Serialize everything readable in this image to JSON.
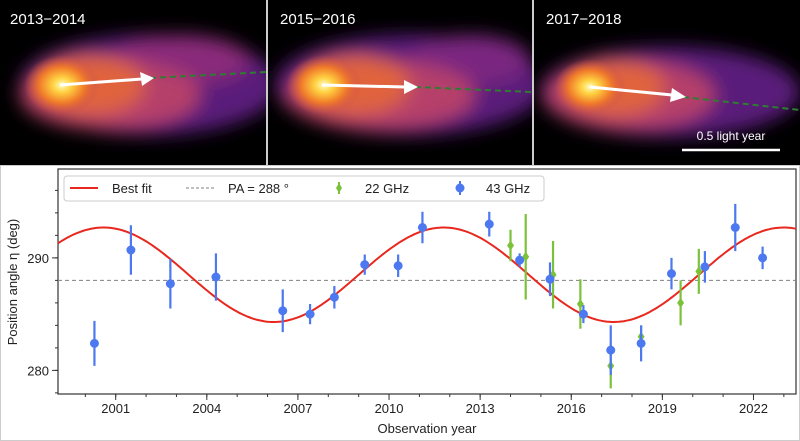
{
  "panels": [
    {
      "label": "2013−2014"
    },
    {
      "label": "2015−2016"
    },
    {
      "label": "2017−2018"
    }
  ],
  "scale_bar": {
    "label": "0.5 light year"
  },
  "chart_data": {
    "type": "scatter",
    "xlabel": "Observation year",
    "ylabel": "Position angle η (deg)",
    "xlim": [
      1999.1,
      2023.4
    ],
    "ylim": [
      277.9,
      297.9
    ],
    "x_ticks": [
      2001,
      2004,
      2007,
      2010,
      2013,
      2016,
      2019,
      2022
    ],
    "y_ticks": [
      280,
      290
    ],
    "grid": false,
    "legend_position": "top-left",
    "colors": {
      "fit": "#e8281e",
      "pa": "#808080",
      "ghz22": "#7cc13a",
      "ghz43": "#4c78f0"
    },
    "legend": {
      "fit": "Best fit",
      "pa": "PA = 288 °",
      "ghz22": "22 GHz",
      "ghz43": "43 GHz"
    },
    "reference_line": {
      "value": 288
    },
    "best_fit": {
      "mean": 288.5,
      "amplitude": 4.2,
      "period_years": 11.2,
      "peak_year": 2000.6
    },
    "series": [
      {
        "name": "22 GHz",
        "marker": "diamond",
        "points": [
          {
            "x": 2014.0,
            "y": 291.1,
            "err": 1.4
          },
          {
            "x": 2014.5,
            "y": 290.1,
            "err": 3.8
          },
          {
            "x": 2015.4,
            "y": 288.5,
            "err": 3.0
          },
          {
            "x": 2016.3,
            "y": 285.9,
            "err": 2.2
          },
          {
            "x": 2017.3,
            "y": 280.4,
            "err": 2.0
          },
          {
            "x": 2018.3,
            "y": 283.0,
            "err": 1.0
          },
          {
            "x": 2019.6,
            "y": 286.0,
            "err": 2.0
          },
          {
            "x": 2020.2,
            "y": 288.8,
            "err": 2.0
          }
        ]
      },
      {
        "name": "43 GHz",
        "marker": "circle",
        "points": [
          {
            "x": 2000.3,
            "y": 282.4,
            "err": 2.0
          },
          {
            "x": 2001.5,
            "y": 290.7,
            "err": 2.2
          },
          {
            "x": 2002.8,
            "y": 287.7,
            "err": 2.2
          },
          {
            "x": 2004.3,
            "y": 288.3,
            "err": 2.1
          },
          {
            "x": 2006.5,
            "y": 285.3,
            "err": 1.9
          },
          {
            "x": 2007.4,
            "y": 285.0,
            "err": 0.9
          },
          {
            "x": 2008.2,
            "y": 286.5,
            "err": 1.0
          },
          {
            "x": 2009.2,
            "y": 289.4,
            "err": 0.9
          },
          {
            "x": 2010.3,
            "y": 289.3,
            "err": 1.0
          },
          {
            "x": 2011.1,
            "y": 292.7,
            "err": 1.4
          },
          {
            "x": 2013.3,
            "y": 293.0,
            "err": 1.1
          },
          {
            "x": 2014.3,
            "y": 289.8,
            "err": 0.6
          },
          {
            "x": 2015.3,
            "y": 288.1,
            "err": 1.5
          },
          {
            "x": 2016.4,
            "y": 285.0,
            "err": 0.8
          },
          {
            "x": 2017.3,
            "y": 281.8,
            "err": 2.2
          },
          {
            "x": 2018.3,
            "y": 282.4,
            "err": 1.6
          },
          {
            "x": 2019.3,
            "y": 288.6,
            "err": 1.4
          },
          {
            "x": 2020.4,
            "y": 289.2,
            "err": 1.4
          },
          {
            "x": 2021.4,
            "y": 292.7,
            "err": 2.1
          },
          {
            "x": 2022.3,
            "y": 290.0,
            "err": 1.0
          }
        ]
      }
    ]
  }
}
